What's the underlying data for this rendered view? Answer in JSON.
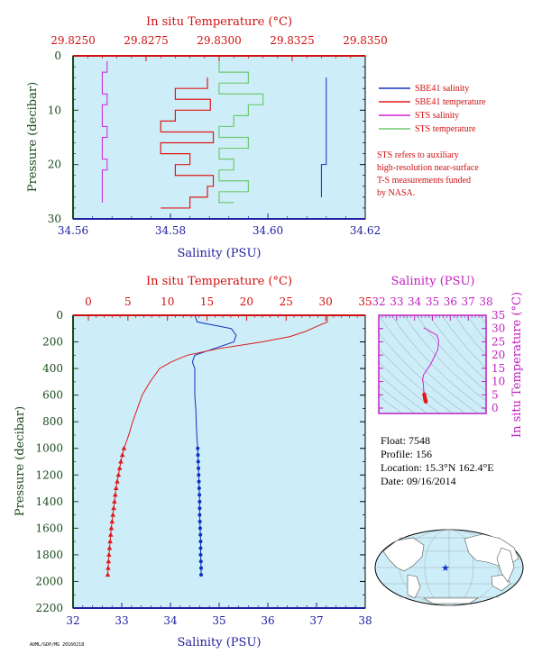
{
  "colors": {
    "salinity": "#1030c0",
    "temperature": "#e01818",
    "sts_salinity": "#d020d0",
    "sts_temperature": "#70c870",
    "plot_bg": "#cdeef8",
    "axis_salinity": "#2020a0",
    "axis_temperature": "#d01010",
    "axis_pressure": "#1a4a1a",
    "ts_axis": "#c020c0"
  },
  "top_panel": {
    "top_axis_label": "In situ Temperature (°C)",
    "top_ticks": [
      "29.8250",
      "29.8275",
      "29.8300",
      "29.8325",
      "29.8350"
    ],
    "bottom_axis_label": "Salinity (PSU)",
    "bottom_ticks": [
      "34.56",
      "34.58",
      "34.60",
      "34.62"
    ],
    "left_axis_label": "Pressure (decibar)",
    "left_ticks": [
      "0",
      "10",
      "20",
      "30"
    ],
    "legend": [
      {
        "label": "SBE41 salinity",
        "color": "#1030c0"
      },
      {
        "label": "SBE41 temperature",
        "color": "#e01818"
      },
      {
        "label": "STS salinity",
        "color": "#d020d0"
      },
      {
        "label": "STS temperature",
        "color": "#70c870"
      }
    ],
    "note": [
      "STS refers to auxiliary",
      "high-resolution near-surface",
      "T-S measurements funded",
      "by NASA."
    ]
  },
  "bottom_panel": {
    "top_axis_label": "In situ Temperature (°C)",
    "top_ticks": [
      "0",
      "5",
      "10",
      "15",
      "20",
      "25",
      "30",
      "35"
    ],
    "bottom_axis_label": "Salinity (PSU)",
    "bottom_ticks": [
      "32",
      "33",
      "34",
      "35",
      "36",
      "37",
      "38"
    ],
    "left_axis_label": "Pressure (decibar)",
    "left_ticks": [
      "0",
      "200",
      "400",
      "600",
      "800",
      "1000",
      "1200",
      "1400",
      "1600",
      "1800",
      "2000",
      "2200"
    ]
  },
  "ts_panel": {
    "top_axis_label": "Salinity (PSU)",
    "top_ticks": [
      "32",
      "33",
      "34",
      "35",
      "36",
      "37",
      "38"
    ],
    "right_axis_label": "In situ Temperature (°C)",
    "right_ticks": [
      "0",
      "5",
      "10",
      "15",
      "20",
      "25",
      "30",
      "35"
    ]
  },
  "info": {
    "float": "Float:  7548",
    "profile": "Profile:  156",
    "location": "Location:  15.3°N  162.4°E",
    "date": "Date:  09/16/2014"
  },
  "footer_code": "AOML/GDP/MG 20160218",
  "chart_data": [
    {
      "type": "line",
      "title": "",
      "xlabel": "Salinity (PSU)",
      "x2label": "In situ Temperature (°C)",
      "ylabel": "Pressure (decibar)",
      "xlim": [
        34.56,
        34.62
      ],
      "x2lim": [
        29.825,
        29.835
      ],
      "ylim": [
        30,
        0
      ],
      "series": [
        {
          "name": "SBE41 salinity",
          "axis": "salinity",
          "pressure": [
            4,
            6,
            8,
            10,
            12,
            14,
            16,
            18,
            20,
            22,
            24,
            26
          ],
          "values": [
            34.612,
            34.612,
            34.612,
            34.612,
            34.612,
            34.612,
            34.612,
            34.612,
            34.611,
            34.611,
            34.611,
            34.611
          ]
        },
        {
          "name": "SBE41 temperature",
          "axis": "temperature",
          "pressure": [
            4,
            6,
            8,
            10,
            12,
            14,
            16,
            18,
            20,
            22,
            24,
            26,
            28
          ],
          "values": [
            29.8296,
            29.8285,
            29.8297,
            29.8285,
            29.828,
            29.8298,
            29.828,
            29.829,
            29.8285,
            29.8298,
            29.8296,
            29.829,
            29.828
          ]
        },
        {
          "name": "STS salinity",
          "axis": "salinity",
          "pressure": [
            1,
            3,
            5,
            7,
            9,
            11,
            13,
            15,
            17,
            19,
            21,
            23,
            25,
            27
          ],
          "values": [
            34.567,
            34.566,
            34.566,
            34.567,
            34.566,
            34.566,
            34.567,
            34.566,
            34.566,
            34.567,
            34.566,
            34.566,
            34.566,
            34.566
          ]
        },
        {
          "name": "STS temperature",
          "axis": "temperature",
          "pressure": [
            1,
            3,
            5,
            7,
            9,
            11,
            13,
            15,
            17,
            19,
            21,
            23,
            25,
            27
          ],
          "values": [
            29.83,
            29.831,
            29.83,
            29.8315,
            29.831,
            29.8305,
            29.83,
            29.831,
            29.83,
            29.8305,
            29.83,
            29.831,
            29.83,
            29.8305
          ]
        }
      ]
    },
    {
      "type": "line",
      "title": "",
      "xlabel": "Salinity (PSU)",
      "x2label": "In situ Temperature (°C)",
      "ylabel": "Pressure (decibar)",
      "xlim": [
        32,
        38
      ],
      "x2lim": [
        0,
        35
      ],
      "ylim": [
        2200,
        0
      ],
      "series": [
        {
          "name": "Salinity",
          "axis": "salinity",
          "pressure": [
            0,
            50,
            100,
            150,
            200,
            250,
            300,
            350,
            400,
            500,
            600,
            700,
            800,
            900,
            1000,
            1100,
            1200,
            1300,
            1400,
            1500,
            1600,
            1700,
            1800,
            1900,
            1950
          ],
          "values": [
            34.5,
            34.55,
            35.25,
            35.35,
            35.3,
            34.9,
            34.5,
            34.45,
            34.5,
            34.5,
            34.5,
            34.52,
            34.53,
            34.54,
            34.56,
            34.57,
            34.58,
            34.59,
            34.6,
            34.6,
            34.61,
            34.62,
            34.62,
            34.63,
            34.63
          ],
          "markers_from_pressure": 1000
        },
        {
          "name": "Temperature",
          "axis": "temperature",
          "pressure": [
            0,
            50,
            80,
            120,
            160,
            200,
            250,
            300,
            350,
            400,
            500,
            600,
            700,
            800,
            900,
            1000,
            1100,
            1200,
            1300,
            1400,
            1500,
            1600,
            1700,
            1800,
            1900,
            1950
          ],
          "values": [
            30.2,
            30.2,
            29.0,
            27.5,
            25.5,
            22.0,
            16.5,
            12.5,
            10.5,
            9.0,
            7.8,
            6.8,
            6.2,
            5.6,
            5.1,
            4.5,
            4.1,
            3.8,
            3.5,
            3.3,
            3.1,
            2.9,
            2.75,
            2.6,
            2.5,
            2.45
          ],
          "markers_from_pressure": 1000
        }
      ]
    },
    {
      "type": "scatter",
      "title": "",
      "xlabel": "Salinity (PSU)",
      "ylabel": "In situ Temperature (°C)",
      "xlim": [
        32,
        38
      ],
      "ylim": [
        -2,
        35
      ],
      "series": [
        {
          "name": "T-S",
          "x": [
            34.5,
            34.55,
            35.25,
            35.35,
            35.3,
            34.9,
            34.5,
            34.45,
            34.5,
            34.5,
            34.52,
            34.54,
            34.56,
            34.58,
            34.6,
            34.62,
            34.63
          ],
          "y": [
            30.2,
            30.2,
            27.5,
            25.5,
            22.0,
            16.5,
            12.5,
            10.5,
            9.0,
            7.8,
            6.2,
            5.1,
            4.5,
            3.8,
            3.3,
            2.75,
            2.45
          ]
        }
      ]
    }
  ]
}
